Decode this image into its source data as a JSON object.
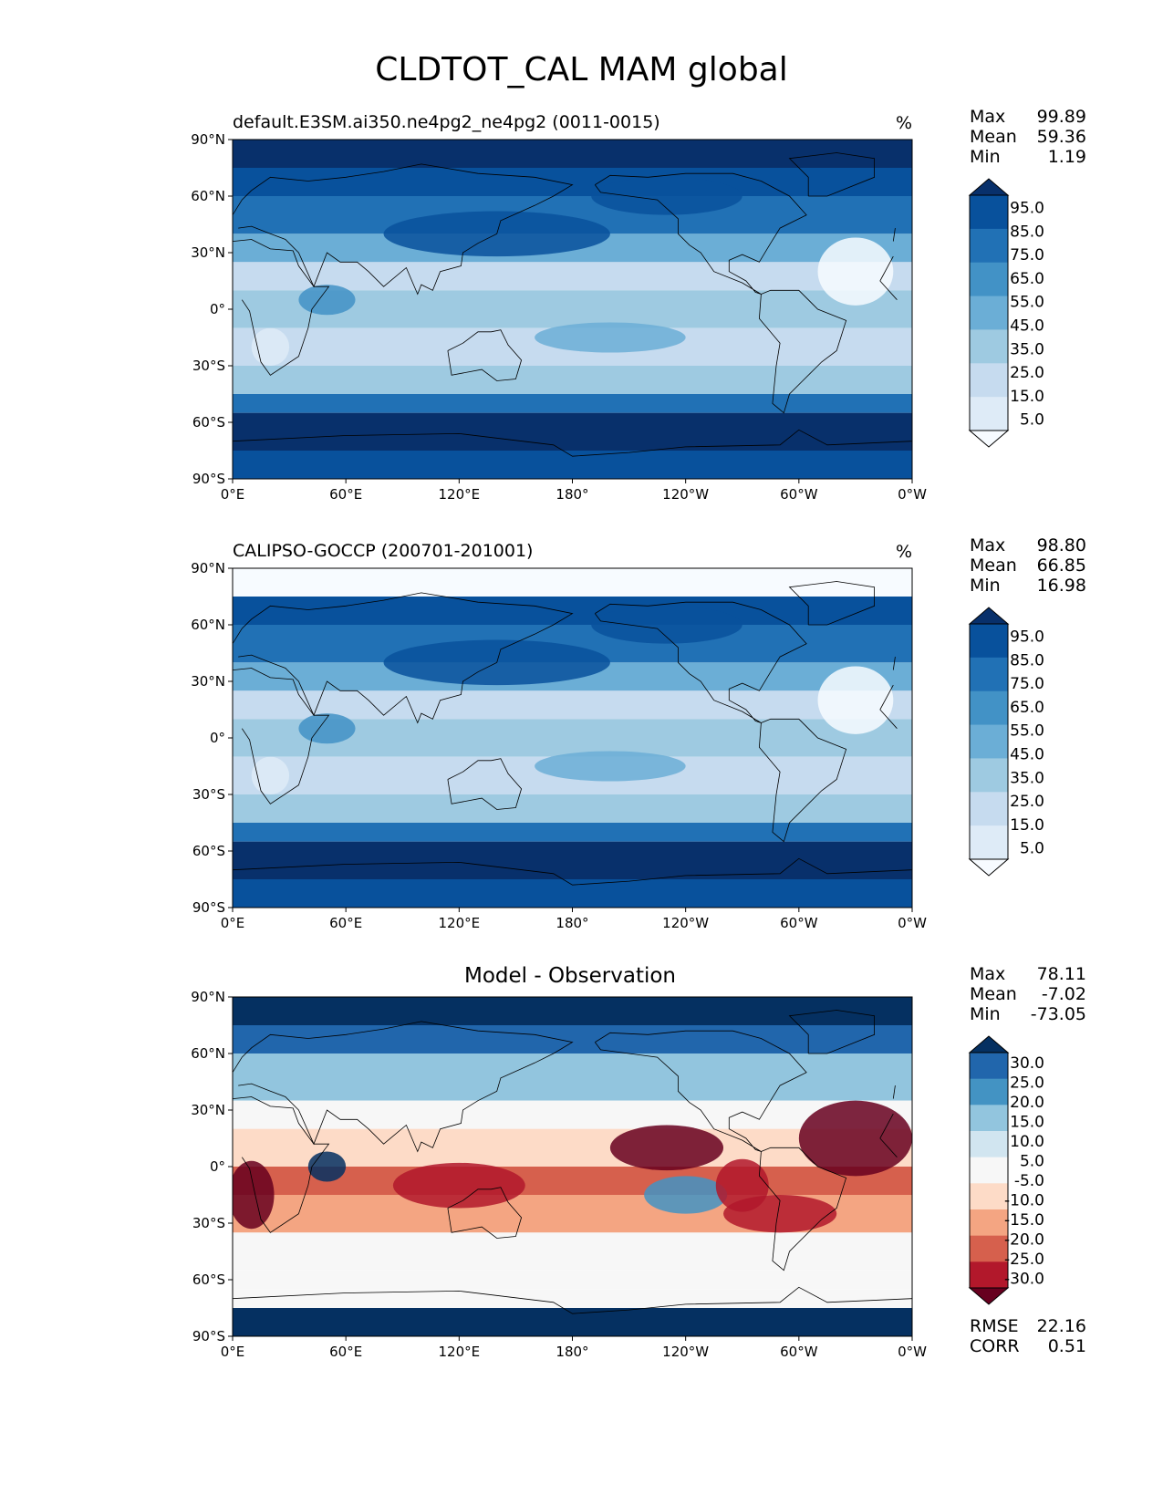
{
  "title": "CLDTOT_CAL MAM global",
  "axes": {
    "lat_ticks": [
      "90°N",
      "60°N",
      "30°N",
      "0°",
      "30°S",
      "60°S",
      "90°S"
    ],
    "lon_ticks": [
      "0°E",
      "60°E",
      "120°E",
      "180°",
      "120°W",
      "60°W",
      "0°W"
    ]
  },
  "panels": [
    {
      "id": "model",
      "title": "default.E3SM.ai350.ne4pg2_ne4pg2 (0011-0015)",
      "units": "%",
      "stats": {
        "max_label": "Max",
        "max": "99.89",
        "mean_label": "Mean",
        "mean": "59.36",
        "min_label": "Min",
        "min": "1.19"
      },
      "colorbar": {
        "labels": [
          "95.0",
          "85.0",
          "75.0",
          "65.0",
          "55.0",
          "45.0",
          "35.0",
          "25.0",
          "15.0",
          "5.0"
        ],
        "colors": [
          "#08306b",
          "#08519c",
          "#2171b5",
          "#4292c6",
          "#6baed6",
          "#9ecae1",
          "#c6dbef",
          "#deebf7",
          "#f7fbff"
        ]
      }
    },
    {
      "id": "obs",
      "title": "CALIPSO-GOCCP (200701-201001)",
      "units": "%",
      "stats": {
        "max_label": "Max",
        "max": "98.80",
        "mean_label": "Mean",
        "mean": "66.85",
        "min_label": "Min",
        "min": "16.98"
      },
      "colorbar": {
        "labels": [
          "95.0",
          "85.0",
          "75.0",
          "65.0",
          "55.0",
          "45.0",
          "35.0",
          "25.0",
          "15.0",
          "5.0"
        ],
        "colors": [
          "#08306b",
          "#08519c",
          "#2171b5",
          "#4292c6",
          "#6baed6",
          "#9ecae1",
          "#c6dbef",
          "#deebf7",
          "#f7fbff"
        ]
      }
    },
    {
      "id": "diff",
      "title": "Model - Observation",
      "units": "",
      "stats": {
        "max_label": "Max",
        "max": "78.11",
        "mean_label": "Mean",
        "mean": "-7.02",
        "min_label": "Min",
        "min": "-73.05"
      },
      "extra_stats": {
        "rmse_label": "RMSE",
        "rmse": "22.16",
        "corr_label": "CORR",
        "corr": "0.51"
      },
      "colorbar": {
        "labels": [
          "30.0",
          "25.0",
          "20.0",
          "15.0",
          "10.0",
          "5.0",
          "-5.0",
          "-10.0",
          "-15.0",
          "-20.0",
          "-25.0",
          "-30.0"
        ],
        "colors": [
          "#053061",
          "#2166ac",
          "#4393c3",
          "#92c5de",
          "#d1e5f0",
          "#f7f7f7",
          "#fddbc7",
          "#f4a582",
          "#d6604d",
          "#b2182b",
          "#67001f"
        ]
      }
    }
  ]
}
